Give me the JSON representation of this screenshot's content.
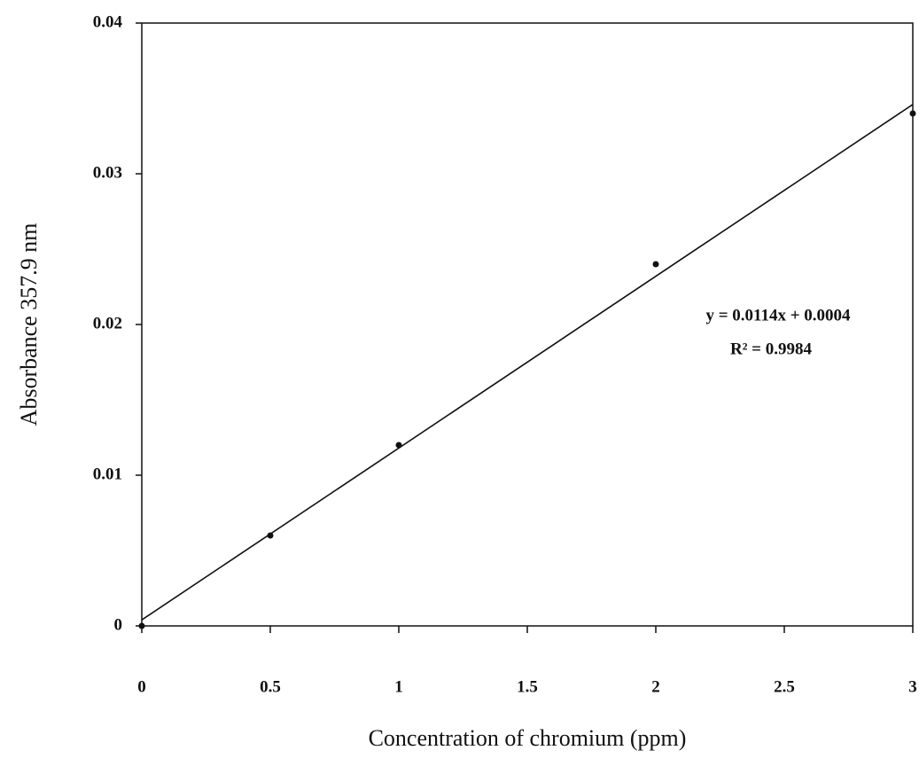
{
  "chart_data": {
    "type": "scatter",
    "x_label": "Concentration of chromium (ppm)",
    "y_label": "Absorbance 357.9 nm",
    "x": [
      0,
      0.5,
      1,
      2,
      3
    ],
    "values": [
      0,
      0.006,
      0.012,
      0.024,
      0.034
    ],
    "color": "#111111",
    "fit_line": {
      "x": [
        0,
        3
      ],
      "values": [
        0.0004,
        0.0346
      ],
      "color": "#111111"
    },
    "annotations": [
      "y = 0.0114x + 0.0004",
      "R² = 0.9984"
    ],
    "xlim": [
      0,
      3
    ],
    "ylim": [
      0,
      0.04
    ],
    "xticks": [
      0,
      0.5,
      1,
      1.5,
      2,
      2.5,
      3
    ],
    "yticks": [
      0,
      0.01,
      0.02,
      0.03,
      0.04
    ],
    "grid": false
  }
}
